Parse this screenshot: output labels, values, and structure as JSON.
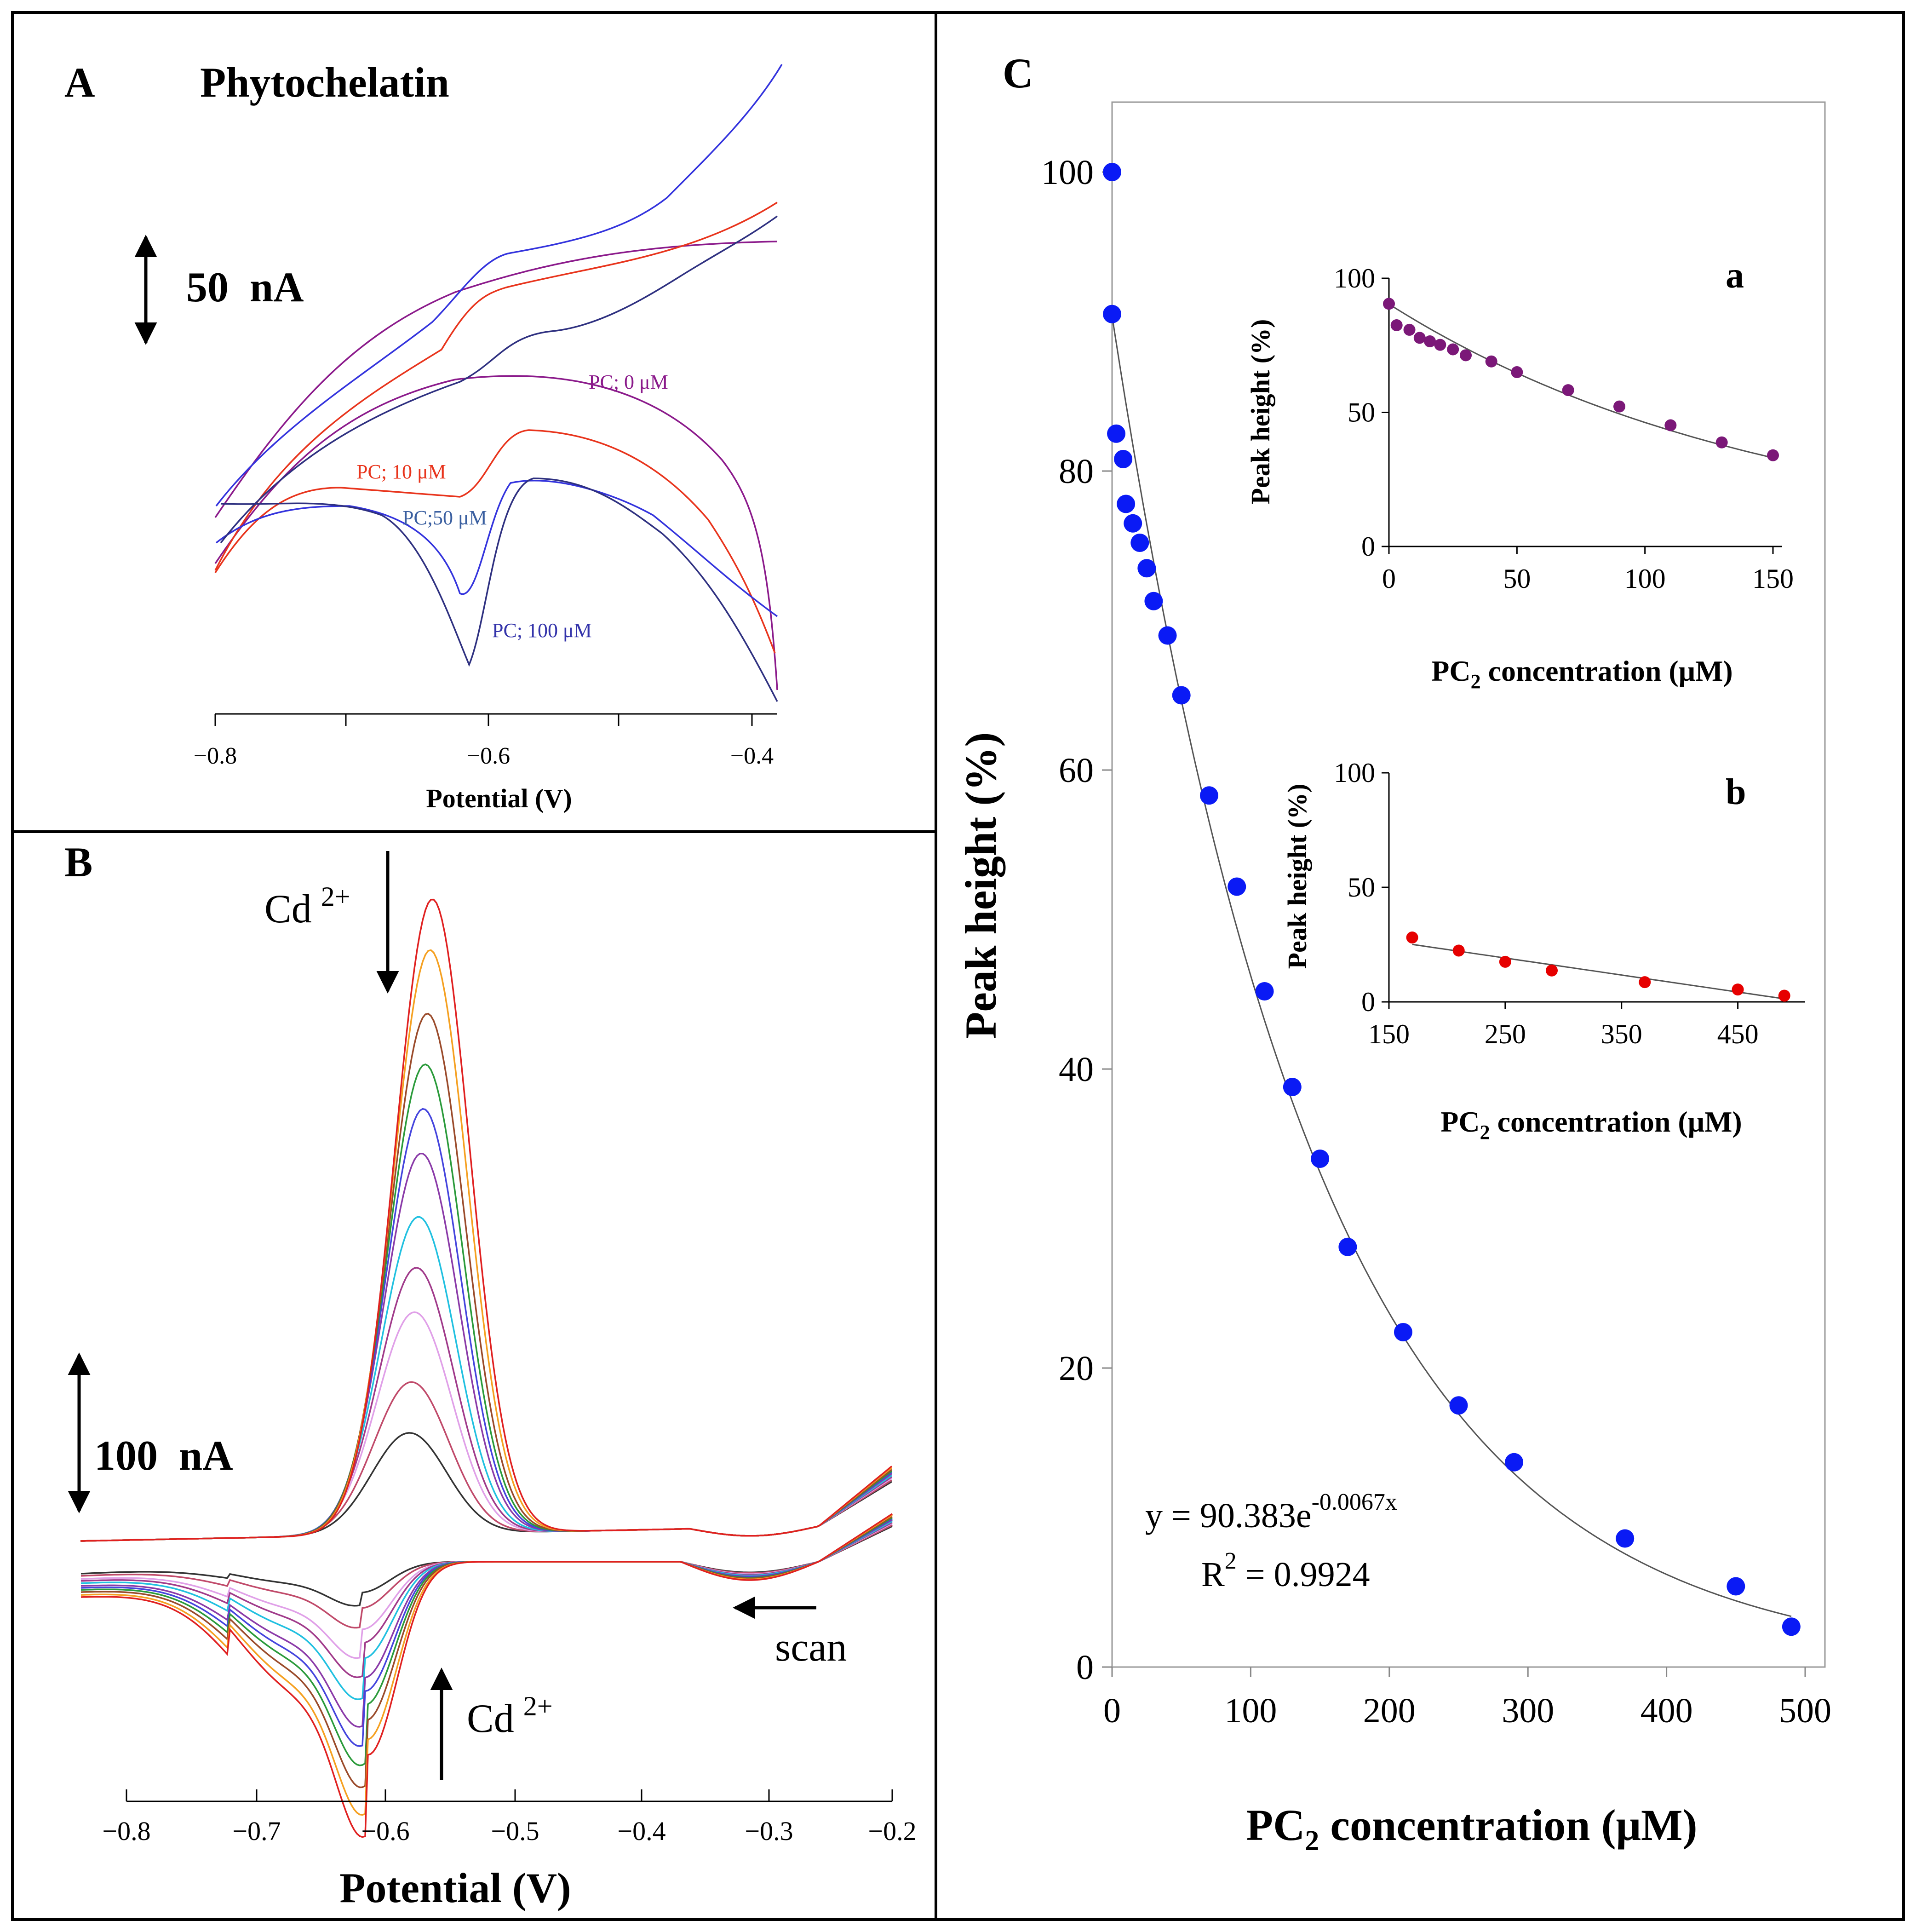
{
  "colors": {
    "purple_curve": "#8B1A8B",
    "red_curve": "#E8341C",
    "blue_curve": "#3333DD",
    "navy_curve": "#2E3080",
    "dot_blue": "#0A1AF5",
    "dot_purple": "#7B1878",
    "dot_red": "#E60000"
  },
  "panel_a": {
    "letter": "A",
    "title": "Phytochelatin",
    "scale_bar": "50  nA",
    "xlabel": "Potential (V)",
    "xticks": [
      "−0.8",
      "−0.6",
      "−0.4"
    ],
    "labels": {
      "pc0": "PC; 0 μM",
      "pc10": "PC; 10 μM",
      "pc50": "PC;50 μM",
      "pc100": "PC; 100 μM"
    }
  },
  "panel_b": {
    "letter": "B",
    "scale_bar": "100  nA",
    "cd_top": "Cd",
    "cd_top_sup": "2+",
    "cd_bottom": "Cd",
    "cd_bottom_sup": "2+",
    "scan": "scan",
    "xlabel": "Potential (V)",
    "xticks": [
      "−0.8",
      "−0.7",
      "−0.6",
      "−0.5",
      "−0.4",
      "−0.3",
      "−0.2"
    ],
    "curve_colors": [
      "#e02020",
      "#f5a020",
      "#9a4a2a",
      "#2a9a3a",
      "#4444dd",
      "#8a3aa8",
      "#20c0e0",
      "#a03a8a",
      "#e0a0e8",
      "#c04a6a",
      "#333333"
    ],
    "peak_heights_relative": [
      1.0,
      0.92,
      0.82,
      0.74,
      0.67,
      0.6,
      0.5,
      0.42,
      0.35,
      0.24,
      0.16
    ]
  },
  "chart_data": {
    "type": "scatter",
    "letter": "C",
    "xlabel_main": "PC",
    "xlabel_sub": "2",
    "xlabel_rest": " concentration (μM)",
    "ylabel": "Peak height (%)",
    "xlim": [
      0,
      500
    ],
    "ylim": [
      0,
      100
    ],
    "xticks": [
      "0",
      "100",
      "200",
      "300",
      "400",
      "500"
    ],
    "yticks": [
      "0",
      "20",
      "40",
      "60",
      "80",
      "100"
    ],
    "x": [
      0,
      0,
      3,
      8,
      10,
      15,
      20,
      25,
      30,
      40,
      50,
      70,
      90,
      110,
      130,
      150,
      170,
      210,
      250,
      290,
      370,
      450,
      490
    ],
    "y": [
      100,
      90.5,
      82.5,
      80.8,
      77.8,
      76.5,
      75.2,
      73.5,
      71.3,
      69.0,
      65.0,
      58.3,
      52.2,
      45.2,
      38.8,
      34.0,
      28.1,
      22.4,
      17.5,
      13.7,
      8.6,
      5.4,
      2.7
    ],
    "fit": {
      "a": 90.383,
      "b": -0.0067
    },
    "equation": "y = 90.383e",
    "equation_exp": "-0.0067x",
    "r2_label": "R",
    "r2_sup": "2",
    "r2_value": " = 0.9924",
    "inset_a": {
      "letter": "a",
      "ylabel": "Peak height (%)",
      "xlabel_main": "PC",
      "xlabel_sub": "2",
      "xlabel_rest": " concentration (μM)",
      "xlim": [
        0,
        150
      ],
      "ylim": [
        0,
        100
      ],
      "xticks": [
        "0",
        "50",
        "100",
        "150"
      ],
      "yticks": [
        "0",
        "50",
        "100"
      ],
      "x": [
        0,
        3,
        8,
        12,
        16,
        20,
        25,
        30,
        40,
        50,
        70,
        90,
        110,
        130,
        150
      ],
      "y": [
        90.5,
        82.5,
        80.8,
        77.8,
        76.5,
        75.2,
        73.5,
        71.3,
        69.0,
        65.0,
        58.3,
        52.2,
        45.2,
        38.8,
        34.0
      ]
    },
    "inset_b": {
      "letter": "b",
      "ylabel": "Peak height (%)",
      "xlabel_main": "PC",
      "xlabel_sub": "2",
      "xlabel_rest": " concentration (μM)",
      "xlim": [
        150,
        500
      ],
      "ylim": [
        0,
        100
      ],
      "xticks": [
        "150",
        "250",
        "350",
        "450"
      ],
      "yticks": [
        "0",
        "50",
        "100"
      ],
      "x": [
        170,
        210,
        250,
        290,
        370,
        450,
        490
      ],
      "y": [
        28.1,
        22.4,
        17.5,
        13.7,
        8.6,
        5.4,
        2.7
      ]
    }
  }
}
